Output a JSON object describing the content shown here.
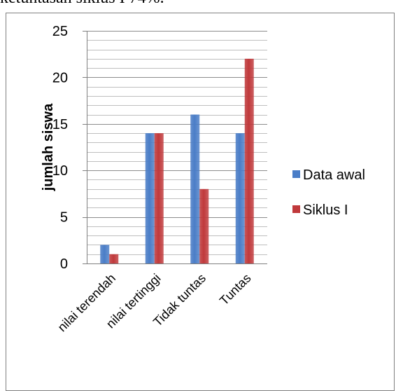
{
  "header": {
    "caption_fragment": "ketuntasan siklus I 74%."
  },
  "colors": {
    "series_1": "#4a7dc7",
    "series_2": "#c0393b",
    "grid": "#a6a6a6",
    "axis": "#808080"
  },
  "chart_data": {
    "type": "bar",
    "categories": [
      "nilai terendah",
      "nilai tertinggi",
      "Tidak tuntas",
      "Tuntas"
    ],
    "series": [
      {
        "name": "Data awal",
        "values": [
          2,
          14,
          16,
          14
        ]
      },
      {
        "name": "Siklus I",
        "values": [
          1,
          14,
          8,
          22
        ]
      }
    ],
    "ylabel": "jumlah siswa",
    "xlabel": "",
    "ylim": [
      0,
      25
    ],
    "y_ticks": [
      "0",
      "5",
      "10",
      "15",
      "20",
      "25"
    ],
    "minor_gridlines_per_major": 5,
    "grid": true,
    "legend_position": "right"
  }
}
